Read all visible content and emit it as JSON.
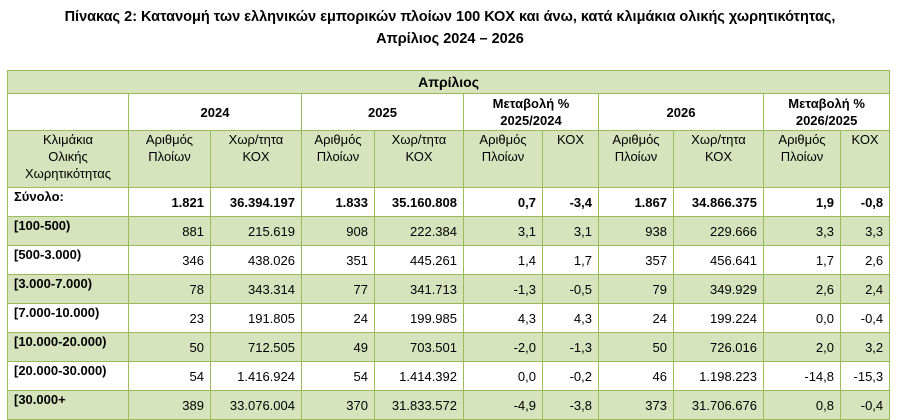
{
  "title": {
    "line1": "Πίνακας 2: Κατανομή των ελληνικών εμπορικών πλοίων 100 ΚΟΧ και άνω, κατά κλιμάκια ολικής χωρητικότητας,",
    "line2": "Απρίλιος 2024 – 2026"
  },
  "header": {
    "month": "Απρίλιος",
    "y2024": "2024",
    "y2025": "2025",
    "chg1_line1": "Μεταβολή %",
    "chg1_line2": "2025/2024",
    "y2026": "2026",
    "chg2_line1": "Μεταβολή %",
    "chg2_line2": "2026/2025",
    "class_label": [
      "Κλιμάκια",
      "Ολικής",
      "Χωρητικότητας"
    ],
    "ships": [
      "Αριθμός",
      "Πλοίων"
    ],
    "capacity": [
      "Χωρ/τητα",
      "ΚΟΧ"
    ],
    "kox": "ΚΟΧ"
  },
  "rows": [
    {
      "label": "Σύνολο:",
      "c": [
        "1.821",
        "36.394.197",
        "1.833",
        "35.160.808",
        "0,7",
        "-3,4",
        "1.867",
        "34.866.375",
        "1,9",
        "-0,8"
      ]
    },
    {
      "label": "[100-500)",
      "c": [
        "881",
        "215.619",
        "908",
        "222.384",
        "3,1",
        "3,1",
        "938",
        "229.666",
        "3,3",
        "3,3"
      ]
    },
    {
      "label": "[500-3.000)",
      "c": [
        "346",
        "438.026",
        "351",
        "445.261",
        "1,4",
        "1,7",
        "357",
        "456.641",
        "1,7",
        "2,6"
      ]
    },
    {
      "label": "[3.000-7.000)",
      "c": [
        "78",
        "343.314",
        "77",
        "341.713",
        "-1,3",
        "-0,5",
        "79",
        "349.929",
        "2,6",
        "2,4"
      ]
    },
    {
      "label": "[7.000-10.000)",
      "c": [
        "23",
        "191.805",
        "24",
        "199.985",
        "4,3",
        "4,3",
        "24",
        "199.224",
        "0,0",
        "-0,4"
      ]
    },
    {
      "label": "[10.000-20.000)",
      "c": [
        "50",
        "712.505",
        "49",
        "703.501",
        "-2,0",
        "-1,3",
        "50",
        "726.016",
        "2,0",
        "3,2"
      ]
    },
    {
      "label": "[20.000-30.000)",
      "c": [
        "54",
        "1.416.924",
        "54",
        "1.414.392",
        "0,0",
        "-0,2",
        "46",
        "1.198.223",
        "-14,8",
        "-15,3"
      ]
    },
    {
      "label": "[30.000+",
      "c": [
        "389",
        "33.076.004",
        "370",
        "31.833.572",
        "-4,9",
        "-3,8",
        "373",
        "31.706.676",
        "0,8",
        "-0,4"
      ]
    }
  ]
}
